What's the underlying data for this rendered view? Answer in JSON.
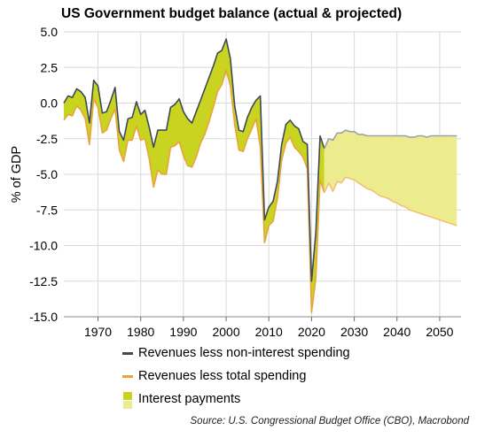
{
  "colors": {
    "actual_line": "#3d4a57",
    "projected_line": "#9aa4a8",
    "total_line": "#e8a43a",
    "total_line_projected": "#f2c078",
    "interest_actual": "#c9d420",
    "interest_projected": "#ecec8e",
    "grid": "#d9d9d9"
  },
  "legend": {
    "items": [
      {
        "label": "Revenues less non-interest spending",
        "kind": "line",
        "color": "#3d4a57"
      },
      {
        "label": "Revenues less total spending",
        "kind": "line",
        "color": "#e8a43a"
      },
      {
        "label": "Interest payments",
        "kind": "swatch",
        "colors": [
          "#c9d420",
          "#ecec8e"
        ]
      }
    ]
  },
  "source": "Source: U.S. Congressional Budget Office (CBO), Macrobond",
  "chart_data": {
    "type": "area",
    "title": "US Government budget balance (actual & projected)",
    "ylabel": "% of GDP",
    "xlabel": "",
    "xlim": [
      1962,
      2055
    ],
    "ylim": [
      -15,
      5
    ],
    "x_ticks": [
      1970,
      1980,
      1990,
      2000,
      2010,
      2020,
      2030,
      2040,
      2050
    ],
    "y_ticks": [
      5.0,
      2.5,
      0.0,
      -2.5,
      -5.0,
      -7.5,
      -10.0,
      -12.5,
      -15.0
    ],
    "y_tick_labels": [
      "5.0",
      "2.5",
      "0.0",
      "-2.5",
      "-5.0",
      "-7.5",
      "-10.0",
      "-12.5",
      "-15.0"
    ],
    "grid": true,
    "last_actual_year": 2023,
    "x": [
      1962,
      1963,
      1964,
      1965,
      1966,
      1967,
      1968,
      1969,
      1970,
      1971,
      1972,
      1973,
      1974,
      1975,
      1976,
      1977,
      1978,
      1979,
      1980,
      1981,
      1982,
      1983,
      1984,
      1985,
      1986,
      1987,
      1988,
      1989,
      1990,
      1991,
      1992,
      1993,
      1994,
      1995,
      1996,
      1997,
      1998,
      1999,
      2000,
      2001,
      2002,
      2003,
      2004,
      2005,
      2006,
      2007,
      2008,
      2009,
      2010,
      2011,
      2012,
      2013,
      2014,
      2015,
      2016,
      2017,
      2018,
      2019,
      2020,
      2021,
      2022,
      2023,
      2024,
      2025,
      2026,
      2027,
      2028,
      2029,
      2030,
      2031,
      2032,
      2033,
      2034,
      2035,
      2036,
      2037,
      2038,
      2039,
      2040,
      2041,
      2042,
      2043,
      2044,
      2045,
      2046,
      2047,
      2048,
      2049,
      2050,
      2051,
      2052,
      2053,
      2054
    ],
    "series": [
      {
        "name": "Revenues less non-interest spending",
        "values": [
          0.0,
          0.5,
          0.4,
          1.0,
          0.8,
          0.4,
          -1.4,
          1.6,
          1.2,
          -0.7,
          -0.6,
          0.2,
          1.1,
          -2.0,
          -2.6,
          -1.1,
          -1.0,
          0.1,
          -0.8,
          -0.5,
          -1.7,
          -3.1,
          -1.9,
          -1.9,
          -1.9,
          -0.3,
          -0.1,
          0.3,
          -0.6,
          -1.1,
          -1.4,
          -0.6,
          0.2,
          1.0,
          1.8,
          2.6,
          3.5,
          3.7,
          4.5,
          3.1,
          -0.2,
          -1.9,
          -2.0,
          -1.0,
          -0.3,
          0.2,
          0.5,
          -8.2,
          -7.3,
          -6.9,
          -5.5,
          -2.9,
          -1.5,
          -1.2,
          -1.6,
          -1.8,
          -2.7,
          -2.9,
          -12.5,
          -9.1,
          -2.3,
          -3.2,
          -2.5,
          -2.6,
          -2.1,
          -2.1,
          -1.9,
          -2.0,
          -2.0,
          -2.2,
          -2.2,
          -2.3,
          -2.3,
          -2.3,
          -2.3,
          -2.3,
          -2.3,
          -2.3,
          -2.3,
          -2.3,
          -2.3,
          -2.4,
          -2.4,
          -2.3,
          -2.3,
          -2.4,
          -2.3,
          -2.3,
          -2.3,
          -2.3,
          -2.3,
          -2.3,
          -2.3
        ]
      },
      {
        "name": "Revenues less total spending",
        "values": [
          -1.2,
          -0.8,
          -0.9,
          -0.2,
          -0.5,
          -1.1,
          -2.9,
          0.3,
          -0.3,
          -2.1,
          -1.9,
          -1.1,
          -0.4,
          -3.3,
          -4.1,
          -2.6,
          -2.6,
          -1.6,
          -2.6,
          -2.5,
          -3.9,
          -5.9,
          -4.7,
          -5.0,
          -5.0,
          -3.1,
          -3.0,
          -2.7,
          -3.7,
          -4.4,
          -4.5,
          -3.8,
          -2.8,
          -2.2,
          -1.3,
          -0.3,
          0.8,
          1.3,
          2.3,
          1.2,
          -1.5,
          -3.3,
          -3.4,
          -2.5,
          -1.8,
          -1.1,
          -3.1,
          -9.8,
          -8.6,
          -8.3,
          -6.7,
          -4.0,
          -2.8,
          -2.4,
          -3.1,
          -3.4,
          -3.8,
          -4.6,
          -14.7,
          -12.3,
          -5.4,
          -6.3,
          -5.6,
          -6.2,
          -5.5,
          -5.6,
          -5.2,
          -5.3,
          -5.4,
          -5.6,
          -5.8,
          -6.0,
          -6.1,
          -6.3,
          -6.5,
          -6.6,
          -6.7,
          -6.9,
          -7.0,
          -7.2,
          -7.3,
          -7.5,
          -7.6,
          -7.7,
          -7.8,
          -7.9,
          -8.0,
          -8.1,
          -8.2,
          -8.3,
          -8.4,
          -8.5,
          -8.6
        ]
      }
    ],
    "fill_between": {
      "name": "Interest payments"
    }
  }
}
